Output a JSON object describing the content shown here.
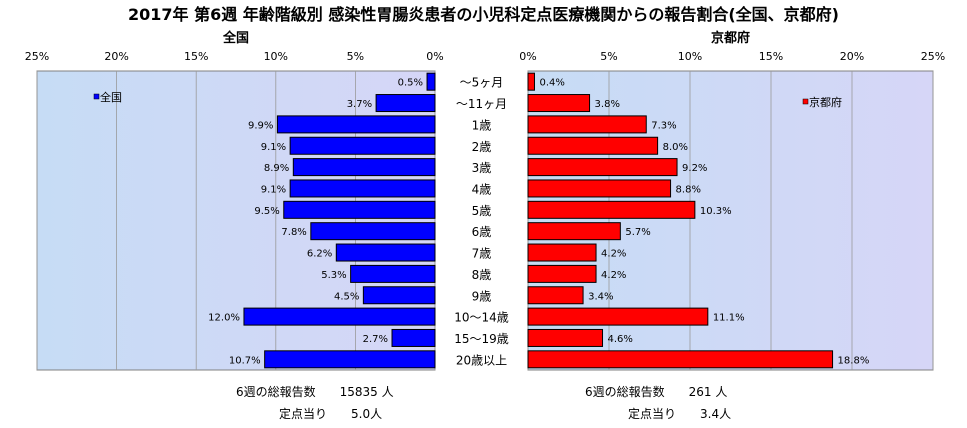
{
  "chart_data": {
    "type": "bar",
    "title": "2017年 第6週 年齢階級別 感染性胃腸炎患者の小児科定点医療機関からの報告割合(全国、京都府)",
    "categories": [
      "～5ヶ月",
      "～11ヶ月",
      "1歳",
      "2歳",
      "3歳",
      "4歳",
      "5歳",
      "6歳",
      "7歳",
      "8歳",
      "9歳",
      "10～14歳",
      "15～19歳",
      "20歳以上"
    ],
    "xlim": [
      0,
      25
    ],
    "ticks": [
      "25%",
      "20%",
      "15%",
      "10%",
      "5%",
      "0%"
    ],
    "ticks_right": [
      "0%",
      "5%",
      "10%",
      "15%",
      "20%",
      "25%"
    ],
    "grid": true,
    "legend_placement_left": "top-left",
    "legend_placement_right": "top-right",
    "series": [
      {
        "name": "全国",
        "side_label": "全国",
        "color": "#0000ff",
        "values": [
          0.5,
          3.7,
          9.9,
          9.1,
          8.9,
          9.1,
          9.5,
          7.8,
          6.2,
          5.3,
          4.5,
          12.0,
          2.7,
          10.7
        ],
        "labels": [
          "0.5%",
          "3.7%",
          "9.9%",
          "9.1%",
          "8.9%",
          "9.1%",
          "9.5%",
          "7.8%",
          "6.2%",
          "5.3%",
          "4.5%",
          "12.0%",
          "2.7%",
          "10.7%"
        ]
      },
      {
        "name": "京都府",
        "side_label": "京都府",
        "color": "#ff0000",
        "values": [
          0.4,
          3.8,
          7.3,
          8.0,
          9.2,
          8.8,
          10.3,
          5.7,
          4.2,
          4.2,
          3.4,
          11.1,
          4.6,
          18.8
        ],
        "labels": [
          "0.4%",
          "3.8%",
          "7.3%",
          "8.0%",
          "9.2%",
          "8.8%",
          "10.3%",
          "5.7%",
          "4.2%",
          "4.2%",
          "3.4%",
          "11.1%",
          "4.6%",
          "18.8%"
        ]
      }
    ]
  },
  "footer": {
    "left_total": "6週の総報告数　　15835 人",
    "left_per": "定点当り　　5.0人",
    "right_total": "6週の総報告数　　261 人",
    "right_per": "定点当り　　3.4人"
  }
}
